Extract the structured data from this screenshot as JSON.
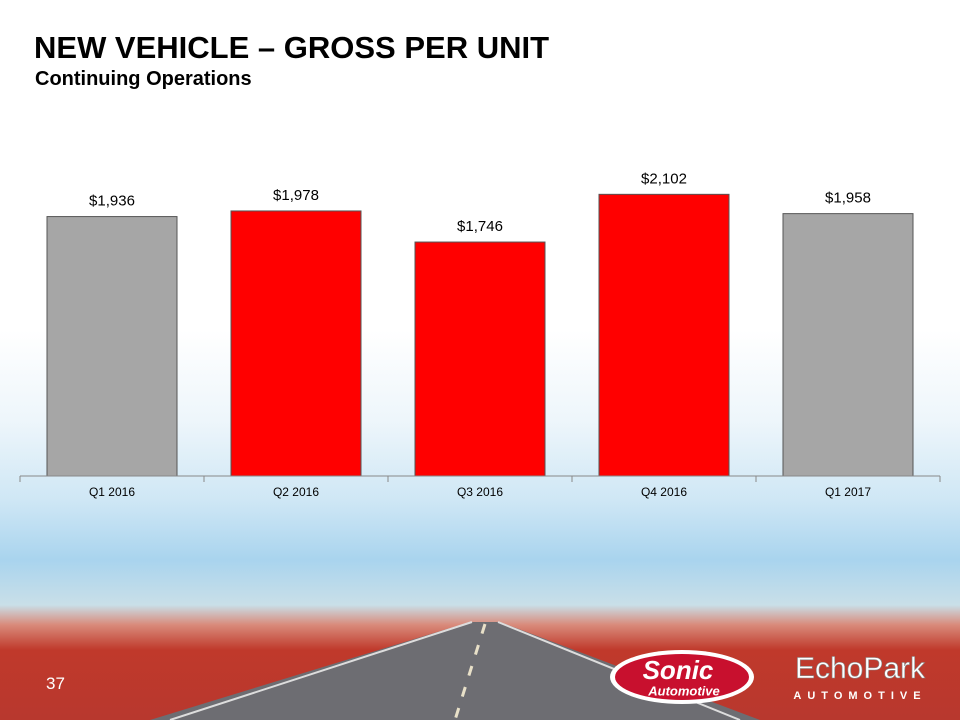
{
  "chart_data": {
    "type": "bar",
    "title": "NEW VEHICLE – GROSS PER UNIT",
    "subtitle": "Continuing Operations",
    "categories": [
      "Q1 2016",
      "Q2 2016",
      "Q3 2016",
      "Q4 2016",
      "Q1 2017"
    ],
    "values": [
      1936,
      1978,
      1746,
      2102,
      1958
    ],
    "value_labels": [
      "$1,936",
      "$1,978",
      "$1,746",
      "$2,102",
      "$1,958"
    ],
    "colors": [
      "#a6a6a6",
      "#ff0000",
      "#ff0000",
      "#ff0000",
      "#a6a6a6"
    ],
    "ylim": [
      0,
      2500
    ]
  },
  "slide": {
    "page_number": "37",
    "logos": [
      "Sonic",
      "Automotive",
      "EchoPark",
      "AUTOMOTIVE"
    ]
  }
}
